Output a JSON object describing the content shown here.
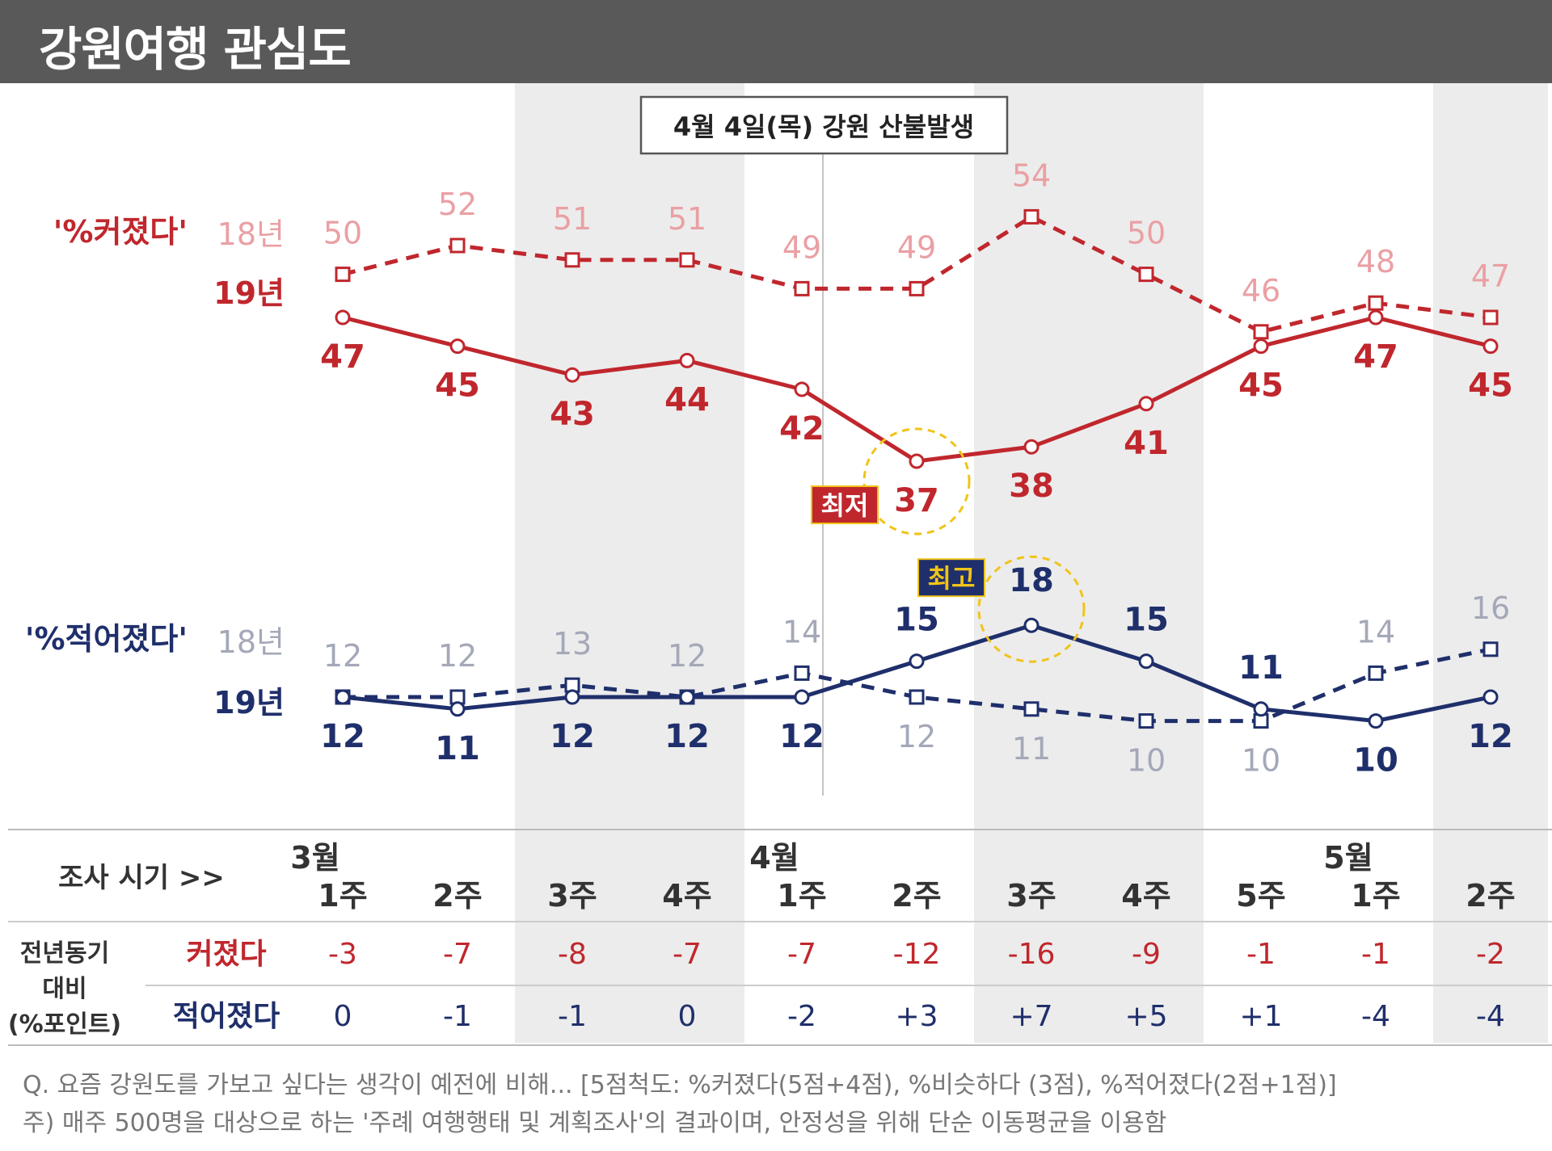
{
  "title": "강원여행 관심도",
  "event_label": "4월 4일(목) 강원 산불발생",
  "chart_data": {
    "type": "line",
    "periods": [
      {
        "month": "3월",
        "week": "1주"
      },
      {
        "month": "",
        "week": "2주"
      },
      {
        "month": "",
        "week": "3주"
      },
      {
        "month": "",
        "week": "4주"
      },
      {
        "month": "4월",
        "week": "1주"
      },
      {
        "month": "",
        "week": "2주"
      },
      {
        "month": "",
        "week": "3주"
      },
      {
        "month": "",
        "week": "4주"
      },
      {
        "month": "",
        "week": "5주"
      },
      {
        "month": "5월",
        "week": "1주"
      },
      {
        "month": "",
        "week": "2주"
      }
    ],
    "groups": [
      {
        "label": "'%커졌다'",
        "color": "#c0272d",
        "light_color": "#eaa0a4",
        "series": [
          {
            "name": "18년",
            "style": "dashed",
            "values": [
              50,
              52,
              51,
              51,
              49,
              49,
              54,
              50,
              46,
              48,
              47
            ]
          },
          {
            "name": "19년",
            "style": "solid",
            "values": [
              47,
              45,
              43,
              44,
              42,
              37,
              38,
              41,
              45,
              47,
              45
            ]
          }
        ],
        "badge": {
          "text": "최저",
          "index": 5,
          "value": 37
        }
      },
      {
        "label": "'%적어졌다'",
        "color": "#1f2f6b",
        "light_color": "#a4a8b8",
        "series": [
          {
            "name": "18년",
            "style": "dashed",
            "values": [
              12,
              12,
              13,
              12,
              14,
              12,
              11,
              10,
              10,
              14,
              16
            ]
          },
          {
            "name": "19년",
            "style": "solid",
            "values": [
              12,
              11,
              12,
              12,
              12,
              15,
              18,
              15,
              11,
              10,
              12
            ]
          }
        ],
        "badge": {
          "text": "최고",
          "index": 6,
          "value": 18
        }
      }
    ],
    "table": {
      "header_label": "조사 시기 >>",
      "row_group_label": [
        "전년동기",
        "대비",
        "(%포인트)"
      ],
      "rows": [
        {
          "label": "커졌다",
          "color": "#c0272d",
          "values": [
            "-3",
            "-7",
            "-8",
            "-7",
            "-7",
            "-12",
            "-16",
            "-9",
            "-1",
            "-1",
            "-2"
          ]
        },
        {
          "label": "적어졌다",
          "color": "#1f2f6b",
          "values": [
            "0",
            "-1",
            "-1",
            "0",
            "-2",
            "+3",
            "+7",
            "+5",
            "+1",
            "-4",
            "-4"
          ]
        }
      ]
    }
  },
  "footnotes": {
    "question": "Q. 요즘 강원도를 가보고 싶다는 생각이 예전에 비해... [5점척도: %커졌다(5점+4점), %비슷하다 (3점), %적어졌다(2점+1점)]",
    "note": "주) 매주 500명을 대상으로 하는 '주례 여행행태 및 계획조사'의 결과이며, 안정성을 위해 단순 이동평균을 이용함"
  }
}
